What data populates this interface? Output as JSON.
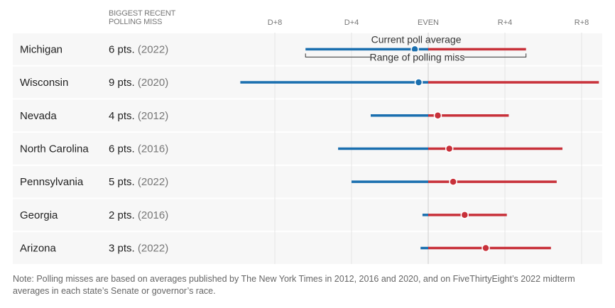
{
  "header": {
    "miss_column": "BIGGEST RECENT POLLING MISS"
  },
  "colors": {
    "dem": "#1a6faf",
    "rep": "#c8313a",
    "row_bg": "#f7f7f7"
  },
  "chart_data": {
    "type": "range-dot",
    "xlim": [
      -10,
      9
    ],
    "ticks": [
      {
        "value": -8,
        "label": "D+8"
      },
      {
        "value": -4,
        "label": "D+4"
      },
      {
        "value": 0,
        "label": "EVEN"
      },
      {
        "value": 4,
        "label": "R+4"
      },
      {
        "value": 8,
        "label": "R+8"
      }
    ],
    "grid": true,
    "annotations": {
      "average": "Current poll average",
      "range": "Range of polling miss"
    },
    "rows": [
      {
        "state": "Michigan",
        "miss": "6 pts.",
        "year": "(2022)",
        "low": -6.4,
        "high": 5.1,
        "average": -0.7
      },
      {
        "state": "Wisconsin",
        "miss": "9 pts.",
        "year": "(2020)",
        "low": -9.8,
        "high": 8.9,
        "average": -0.5
      },
      {
        "state": "Nevada",
        "miss": "4 pts.",
        "year": "(2012)",
        "low": -3.0,
        "high": 4.2,
        "average": 0.5
      },
      {
        "state": "North Carolina",
        "miss": "6 pts.",
        "year": "(2016)",
        "low": -4.7,
        "high": 7.0,
        "average": 1.1
      },
      {
        "state": "Pennsylvania",
        "miss": "5 pts.",
        "year": "(2022)",
        "low": -4.0,
        "high": 6.7,
        "average": 1.3
      },
      {
        "state": "Georgia",
        "miss": "2 pts.",
        "year": "(2016)",
        "low": -0.3,
        "high": 4.1,
        "average": 1.9
      },
      {
        "state": "Arizona",
        "miss": "3 pts.",
        "year": "(2022)",
        "low": -0.4,
        "high": 6.4,
        "average": 3.0
      }
    ]
  },
  "note": "Note: Polling misses are based on averages published by The New York Times in 2012, 2016 and 2020, and on FiveThirtyEight’s 2022 midterm averages in each state’s Senate or governor’s race."
}
